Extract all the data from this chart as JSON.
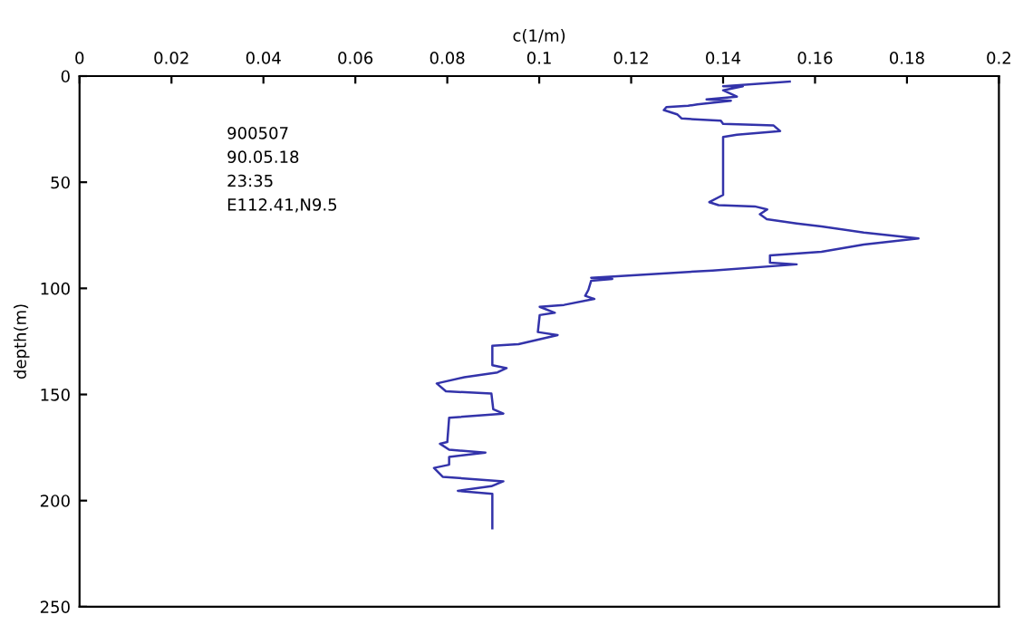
{
  "chart_data": {
    "type": "line",
    "xlabel": "c(1/m)",
    "ylabel": "depth(m)",
    "xlim": [
      0,
      0.2
    ],
    "xticks": [
      0,
      0.02,
      0.04,
      0.06,
      0.08,
      0.1,
      0.12,
      0.14,
      0.16,
      0.18,
      0.2
    ],
    "ylim": [
      250,
      0
    ],
    "yticks": [
      0,
      50,
      100,
      150,
      200,
      250
    ],
    "grid": false,
    "legend": false,
    "annotations": [
      "900507",
      "90.05.18",
      "23:35",
      "E112.41,N9.5"
    ],
    "series": [
      {
        "color": "#3333aa",
        "x": [
          0.1545,
          0.14,
          0.1443,
          0.14,
          0.143,
          0.1364,
          0.1417,
          0.1344,
          0.1324,
          0.1277,
          0.1271,
          0.13,
          0.131,
          0.1395,
          0.14,
          0.148,
          0.151,
          0.1524,
          0.143,
          0.14,
          0.14,
          0.137,
          0.139,
          0.1469,
          0.1496,
          0.148,
          0.1495,
          0.156,
          0.1614,
          0.1706,
          0.1825,
          0.1706,
          0.1614,
          0.1502,
          0.1502,
          0.156,
          0.1377,
          0.1113,
          0.1159,
          0.1113,
          0.1107,
          0.11,
          0.112,
          0.1054,
          0.1001,
          0.1034,
          0.1001,
          0.0997,
          0.104,
          0.0955,
          0.0898,
          0.0898,
          0.0929,
          0.0909,
          0.0837,
          0.0777,
          0.0797,
          0.0896,
          0.09,
          0.0922,
          0.0804,
          0.08,
          0.0784,
          0.0804,
          0.0883,
          0.0804,
          0.0804,
          0.0771,
          0.079,
          0.0922,
          0.0896,
          0.0823,
          0.0898,
          0.0898
        ],
        "values": [
          2.6,
          4.8,
          4.8,
          6.7,
          9.7,
          11,
          11.6,
          13.3,
          14,
          14.6,
          16,
          18,
          20,
          21,
          22.5,
          23,
          23.3,
          25.9,
          27.6,
          28.7,
          56,
          59.4,
          60.8,
          61.4,
          62.8,
          65.1,
          67.4,
          69.4,
          70.8,
          73.7,
          76.5,
          79.4,
          82.8,
          84.5,
          87.9,
          88.7,
          91.6,
          95,
          95.6,
          96.4,
          100.7,
          103.5,
          105,
          107.8,
          108.7,
          111.5,
          112.6,
          120.6,
          122,
          126.3,
          127.1,
          136.2,
          137.6,
          139.6,
          141.9,
          144.8,
          148.5,
          149.6,
          157,
          159,
          161,
          172.4,
          173.2,
          176,
          177.4,
          179.4,
          183.1,
          184.6,
          188.8,
          190.9,
          193.2,
          195.4,
          196.8,
          213
        ]
      }
    ]
  }
}
